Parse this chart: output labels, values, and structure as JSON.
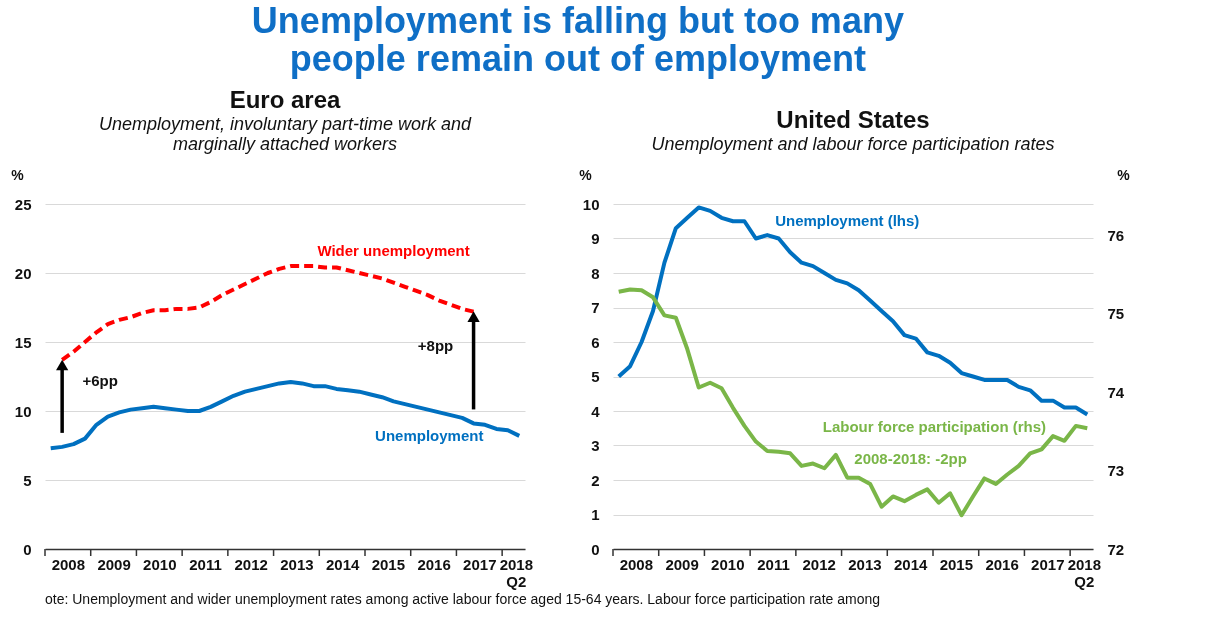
{
  "chart_data": [
    {
      "type": "line",
      "title": "Euro area",
      "subtitle": "Unemployment, involuntary part-time work and marginally attached workers",
      "ylabel": "%",
      "x": [
        2008.125,
        2008.375,
        2008.625,
        2008.875,
        2009.125,
        2009.375,
        2009.625,
        2009.875,
        2010.125,
        2010.375,
        2010.625,
        2010.875,
        2011.125,
        2011.375,
        2011.625,
        2011.875,
        2012.125,
        2012.375,
        2012.625,
        2012.875,
        2013.125,
        2013.375,
        2013.625,
        2013.875,
        2014.125,
        2014.375,
        2014.625,
        2014.875,
        2015.125,
        2015.375,
        2015.625,
        2015.875,
        2016.125,
        2016.375,
        2016.625,
        2016.875,
        2017.125,
        2017.375,
        2017.625,
        2017.875,
        2018.125,
        2018.375
      ],
      "xlim": [
        2008,
        2018.5
      ],
      "xticks": [
        {
          "value": 2008,
          "label": null
        },
        {
          "value": 2008.5,
          "label": "2008"
        },
        {
          "value": 2009,
          "label": null
        },
        {
          "value": 2009.5,
          "label": "2009"
        },
        {
          "value": 2010,
          "label": null
        },
        {
          "value": 2010.5,
          "label": "2010"
        },
        {
          "value": 2011,
          "label": null
        },
        {
          "value": 2011.5,
          "label": "2011"
        },
        {
          "value": 2012,
          "label": null
        },
        {
          "value": 2012.5,
          "label": "2012"
        },
        {
          "value": 2013,
          "label": null
        },
        {
          "value": 2013.5,
          "label": "2013"
        },
        {
          "value": 2014,
          "label": null
        },
        {
          "value": 2014.5,
          "label": "2014"
        },
        {
          "value": 2015,
          "label": null
        },
        {
          "value": 2015.5,
          "label": "2015"
        },
        {
          "value": 2016,
          "label": null
        },
        {
          "value": 2016.5,
          "label": "2016"
        },
        {
          "value": 2017,
          "label": null
        },
        {
          "value": 2017.5,
          "label": "2017"
        },
        {
          "value": 2018,
          "label": null
        },
        {
          "value": 2018.3,
          "label": "2018\nQ2"
        }
      ],
      "ylim": [
        0,
        25
      ],
      "yticks": [
        0,
        5,
        10,
        15,
        20,
        25
      ],
      "grid": "y",
      "legend": false,
      "series": [
        {
          "name": "Unemployment",
          "color": "#0070c0",
          "line_style": "solid",
          "values": [
            7.3,
            7.4,
            7.6,
            8.0,
            9.0,
            9.6,
            9.9,
            10.1,
            10.2,
            10.3,
            10.2,
            10.1,
            10.0,
            10.0,
            10.3,
            10.7,
            11.1,
            11.4,
            11.6,
            11.8,
            12.0,
            12.1,
            12.0,
            11.8,
            11.8,
            11.6,
            11.5,
            11.4,
            11.2,
            11.0,
            10.7,
            10.5,
            10.3,
            10.1,
            9.9,
            9.7,
            9.5,
            9.1,
            9.0,
            8.7,
            8.6,
            8.2
          ]
        },
        {
          "name": "Wider unemployment",
          "color": "#ff0000",
          "line_style": "dashed",
          "values": [
            null,
            13.7,
            14.3,
            15.0,
            15.7,
            16.3,
            16.6,
            16.8,
            17.1,
            17.3,
            17.3,
            17.4,
            17.4,
            17.5,
            17.9,
            18.4,
            18.8,
            19.2,
            19.6,
            20.0,
            20.3,
            20.5,
            20.5,
            20.5,
            20.4,
            20.4,
            20.2,
            20.0,
            19.8,
            19.6,
            19.3,
            19.0,
            18.7,
            18.4,
            18.0,
            17.7,
            17.4,
            17.2,
            null,
            null,
            null,
            null
          ]
        }
      ],
      "annotations": [
        "Unemployment is falling but too many people remain out of employment",
        {
          "text": "+6pp",
          "x": 2008.375,
          "y": 13.7
        },
        {
          "text": "+8pp",
          "x": 2017.375,
          "y": 17.2
        }
      ]
    },
    {
      "type": "line",
      "title": "United States",
      "subtitle": "Unemployment and labour force participation rates",
      "ylabel": "%",
      "y2label": "%",
      "x": [
        2008.125,
        2008.375,
        2008.625,
        2008.875,
        2009.125,
        2009.375,
        2009.625,
        2009.875,
        2010.125,
        2010.375,
        2010.625,
        2010.875,
        2011.125,
        2011.375,
        2011.625,
        2011.875,
        2012.125,
        2012.375,
        2012.625,
        2012.875,
        2013.125,
        2013.375,
        2013.625,
        2013.875,
        2014.125,
        2014.375,
        2014.625,
        2014.875,
        2015.125,
        2015.375,
        2015.625,
        2015.875,
        2016.125,
        2016.375,
        2016.625,
        2016.875,
        2017.125,
        2017.375,
        2017.625,
        2017.875,
        2018.125,
        2018.375
      ],
      "xlim": [
        2008,
        2018.5
      ],
      "xticks": [
        {
          "value": 2008,
          "label": null
        },
        {
          "value": 2008.5,
          "label": "2008"
        },
        {
          "value": 2009,
          "label": null
        },
        {
          "value": 2009.5,
          "label": "2009"
        },
        {
          "value": 2010,
          "label": null
        },
        {
          "value": 2010.5,
          "label": "2010"
        },
        {
          "value": 2011,
          "label": null
        },
        {
          "value": 2011.5,
          "label": "2011"
        },
        {
          "value": 2012,
          "label": null
        },
        {
          "value": 2012.5,
          "label": "2012"
        },
        {
          "value": 2013,
          "label": null
        },
        {
          "value": 2013.5,
          "label": "2013"
        },
        {
          "value": 2014,
          "label": null
        },
        {
          "value": 2014.5,
          "label": "2014"
        },
        {
          "value": 2015,
          "label": null
        },
        {
          "value": 2015.5,
          "label": "2015"
        },
        {
          "value": 2016,
          "label": null
        },
        {
          "value": 2016.5,
          "label": "2016"
        },
        {
          "value": 2017,
          "label": null
        },
        {
          "value": 2017.5,
          "label": "2017"
        },
        {
          "value": 2018,
          "label": null
        },
        {
          "value": 2018.3,
          "label": "2018\nQ2"
        }
      ],
      "ylim": [
        0,
        10
      ],
      "yticks": [
        0,
        1,
        2,
        3,
        4,
        5,
        6,
        7,
        8,
        9,
        10
      ],
      "y2lim": [
        72,
        76.4
      ],
      "y2ticks": [
        72,
        73,
        74,
        75,
        76
      ],
      "grid": "y",
      "legend": false,
      "series": [
        {
          "name": "Unemployment (lhs)",
          "color": "#0070c0",
          "values": [
            5.0,
            5.3,
            6.0,
            6.9,
            8.3,
            9.3,
            9.6,
            9.9,
            9.8,
            9.6,
            9.5,
            9.5,
            9.0,
            9.1,
            9.0,
            8.6,
            8.3,
            8.2,
            8.0,
            7.8,
            7.7,
            7.5,
            7.2,
            6.9,
            6.6,
            6.2,
            6.1,
            5.7,
            5.6,
            5.4,
            5.1,
            5.0,
            4.9,
            4.9,
            4.9,
            4.7,
            4.6,
            4.3,
            4.3,
            4.1,
            4.1,
            3.9
          ]
        },
        {
          "name": "Labour force participation (rhs)",
          "color": "#7ab648",
          "axis": "y2",
          "values": [
            75.28,
            75.31,
            75.3,
            75.21,
            74.98,
            74.95,
            74.55,
            74.06,
            74.12,
            74.05,
            73.8,
            73.57,
            73.37,
            73.25,
            73.24,
            73.22,
            73.06,
            73.09,
            73.03,
            73.2,
            72.91,
            72.91,
            72.83,
            72.54,
            72.67,
            72.61,
            72.69,
            72.76,
            72.59,
            72.71,
            72.43,
            72.67,
            72.9,
            72.83,
            72.95,
            73.06,
            73.22,
            73.27,
            73.44,
            73.38,
            73.57,
            73.54
          ]
        }
      ],
      "annotations": [
        "2008-2018: -2pp",
        "ote: Unemployment and wider unemployment rates among active labour force aged 15-64 years. Labour force participation rate among"
      ]
    }
  ]
}
